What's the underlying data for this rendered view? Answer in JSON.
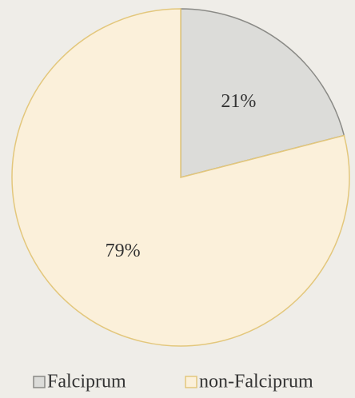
{
  "chart_data": {
    "type": "pie",
    "categories": [
      "Falciprum",
      "non-Falciprum"
    ],
    "values": [
      21,
      79
    ],
    "value_labels": [
      "21%",
      "79%"
    ],
    "colors": [
      "#dcdcd9",
      "#fbf0da"
    ],
    "edgecolors": [
      "#8a8a86",
      "#e3c77c"
    ]
  }
}
